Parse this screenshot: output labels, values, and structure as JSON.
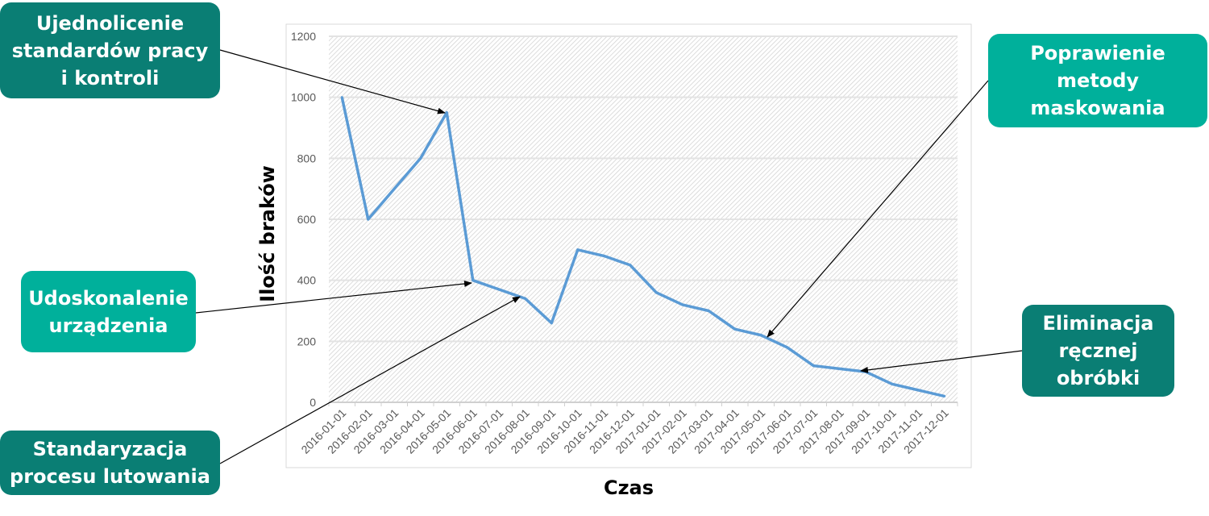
{
  "chart_data": {
    "type": "line",
    "title": "",
    "xlabel": "Czas",
    "ylabel": "Ilość braków",
    "ylim": [
      0,
      1200
    ],
    "yticks": [
      0,
      200,
      400,
      600,
      800,
      1000,
      1200
    ],
    "grid": true,
    "categories": [
      "2016-01-01",
      "2016-02-01",
      "2016-03-01",
      "2016-04-01",
      "2016-05-01",
      "2016-06-01",
      "2016-07-01",
      "2016-08-01",
      "2016-09-01",
      "2016-10-01",
      "2016-11-01",
      "2016-12-01",
      "2017-01-01",
      "2017-02-01",
      "2017-03-01",
      "2017-04-01",
      "2017-05-01",
      "2017-06-01",
      "2017-07-01",
      "2017-08-01",
      "2017-09-01",
      "2017-10-01",
      "2017-11-01",
      "2017-12-01"
    ],
    "series": [
      {
        "name": "Ilość braków",
        "color": "#5b9bd5",
        "values": [
          1000,
          600,
          700,
          800,
          950,
          400,
          370,
          340,
          260,
          500,
          480,
          450,
          360,
          320,
          300,
          240,
          220,
          180,
          120,
          110,
          100,
          60,
          40,
          20
        ]
      }
    ]
  },
  "callouts": [
    {
      "text": "Ujednolicenie standardów pracy i kontroli",
      "color": "#0a7e74",
      "target": "2016-05-01"
    },
    {
      "text": "Poprawienie metody maskowania",
      "color": "#00b09b",
      "target": "2017-05-01"
    },
    {
      "text": "Udoskonalenie urządzenia",
      "color": "#00b09b",
      "target": "2016-06-01"
    },
    {
      "text": "Eliminacja ręcznej obróbki",
      "color": "#0a7e74",
      "target": "2017-09-01"
    },
    {
      "text": "Standaryzacja procesu lutowania",
      "color": "#0a7e74",
      "target": "2016-08-01"
    }
  ]
}
